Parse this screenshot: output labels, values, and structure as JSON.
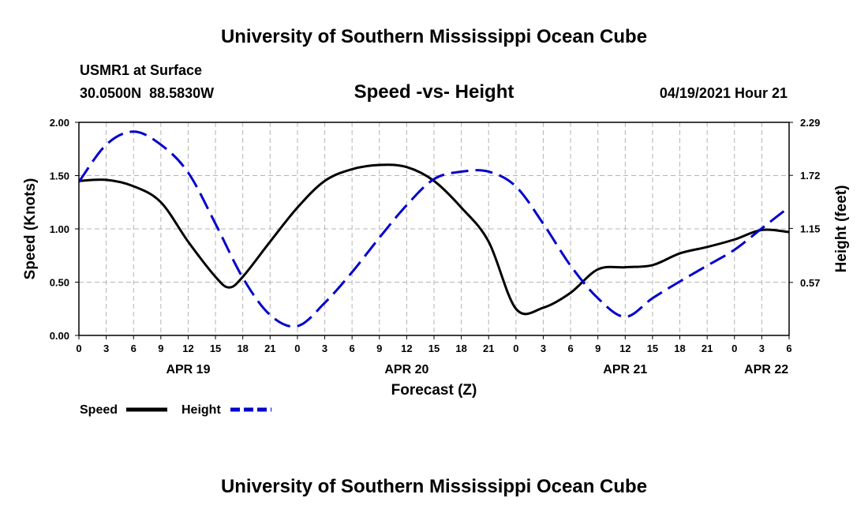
{
  "chart_data": {
    "type": "line",
    "title": "University of Southern Mississippi Ocean Cube",
    "footer_title": "University of Southern Mississippi Ocean Cube",
    "station": "USMR1 at Surface",
    "location": "30.0500N  88.5830W",
    "subtitle": "Speed -vs- Height",
    "timestamp": "04/19/2021 Hour 21",
    "xlabel": "Forecast (Z)",
    "ylabel_left": "Speed (Knots)",
    "ylabel_right": "Height (feet)",
    "x_unit": "hours since 04/19 00Z",
    "xlim": [
      0,
      78
    ],
    "ylim_left": [
      0,
      2.0
    ],
    "ylim_right": [
      0,
      2.29
    ],
    "x_ticks": [
      0,
      3,
      6,
      9,
      12,
      15,
      18,
      21,
      24,
      27,
      30,
      33,
      36,
      39,
      42,
      45,
      48,
      51,
      54,
      57,
      60,
      63,
      66,
      69,
      72,
      75,
      78
    ],
    "x_tick_labels": [
      "0",
      "3",
      "6",
      "9",
      "12",
      "15",
      "18",
      "21",
      "0",
      "3",
      "6",
      "9",
      "12",
      "15",
      "18",
      "21",
      "0",
      "3",
      "6",
      "9",
      "12",
      "15",
      "18",
      "21",
      "0",
      "3",
      "6"
    ],
    "y_left_ticks": [
      0,
      0.5,
      1.0,
      1.5,
      2.0
    ],
    "y_left_tick_labels": [
      "0.00",
      "0.50",
      "1.00",
      "1.50",
      "2.00"
    ],
    "y_right_ticks": [
      0.57,
      1.15,
      1.72,
      2.29
    ],
    "y_right_tick_labels": [
      "0.57",
      "1.15",
      "1.72",
      "2.29"
    ],
    "date_labels": [
      {
        "x": 12,
        "label": "APR 19"
      },
      {
        "x": 36,
        "label": "APR 20"
      },
      {
        "x": 60,
        "label": "APR 21"
      },
      {
        "x": 75.5,
        "label": "APR 22"
      }
    ],
    "grid": true,
    "series": [
      {
        "name": "Speed",
        "axis": "left",
        "color": "#000000",
        "dash": "solid",
        "x": [
          0,
          3,
          6,
          9,
          12,
          15,
          16.5,
          18,
          21,
          24,
          27,
          30,
          33,
          36,
          39,
          42,
          45,
          48,
          51,
          54,
          57,
          60,
          63,
          66,
          69,
          72,
          75,
          78
        ],
        "values": [
          1.45,
          1.46,
          1.4,
          1.25,
          0.88,
          0.55,
          0.45,
          0.55,
          0.88,
          1.2,
          1.45,
          1.56,
          1.6,
          1.58,
          1.45,
          1.2,
          0.88,
          0.25,
          0.26,
          0.4,
          0.62,
          0.64,
          0.66,
          0.77,
          0.83,
          0.9,
          0.99,
          0.97
        ]
      },
      {
        "name": "Height",
        "axis": "right",
        "color": "#0000cc",
        "dash": "dashed",
        "x": [
          0,
          3,
          6,
          9,
          12,
          15,
          18,
          21,
          24,
          27,
          30,
          33,
          36,
          39,
          42,
          45,
          48,
          51,
          54,
          57,
          60,
          63,
          66,
          69,
          72,
          75,
          78
        ],
        "values": [
          1.65,
          2.05,
          2.19,
          2.05,
          1.75,
          1.2,
          0.62,
          0.22,
          0.1,
          0.35,
          0.68,
          1.05,
          1.4,
          1.68,
          1.76,
          1.76,
          1.6,
          1.2,
          0.75,
          0.4,
          0.2,
          0.4,
          0.58,
          0.75,
          0.92,
          1.15,
          1.38
        ]
      }
    ],
    "legend": [
      "Speed",
      "Height"
    ]
  }
}
